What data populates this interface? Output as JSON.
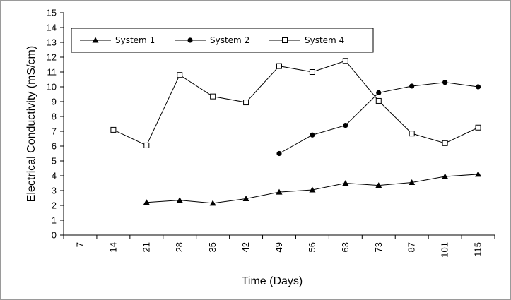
{
  "chart_data": {
    "type": "line",
    "title": "",
    "xlabel": "Time (Days)",
    "ylabel": "Electrical Conductivity (mS/cm)",
    "categories": [
      "7",
      "14",
      "21",
      "28",
      "35",
      "42",
      "49",
      "56",
      "63",
      "73",
      "87",
      "101",
      "115"
    ],
    "ylim": [
      0,
      15
    ],
    "yticks": [
      "0",
      "1",
      "2",
      "3",
      "4",
      "5",
      "6",
      "7",
      "8",
      "9",
      "10",
      "11",
      "12",
      "13",
      "14",
      "15"
    ],
    "grid": false,
    "legend_position": "top",
    "series": [
      {
        "name": "System 1",
        "marker": "triangle",
        "values": [
          null,
          null,
          2.2,
          2.35,
          2.15,
          2.45,
          2.9,
          3.05,
          3.5,
          3.35,
          3.55,
          3.95,
          4.1
        ]
      },
      {
        "name": "System 2",
        "marker": "circle",
        "values": [
          null,
          null,
          null,
          null,
          null,
          null,
          5.5,
          6.75,
          7.4,
          9.6,
          10.05,
          10.3,
          10.0
        ]
      },
      {
        "name": "System 4",
        "marker": "square-open",
        "values": [
          null,
          7.1,
          6.05,
          10.8,
          9.35,
          8.95,
          11.4,
          11.0,
          11.75,
          9.05,
          6.85,
          6.2,
          7.25
        ]
      }
    ]
  }
}
